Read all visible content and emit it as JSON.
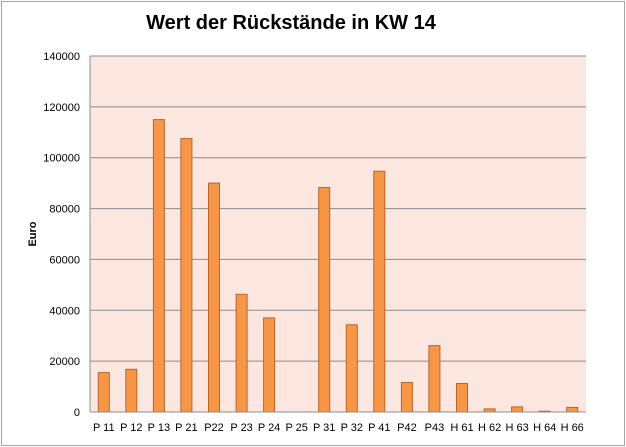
{
  "colors": {
    "plot_bg": "#fbe7e0",
    "bar_fill": "#f79646",
    "bar_stroke": "#b8652a",
    "grid": "#8c8c8c"
  },
  "chart_data": {
    "type": "bar",
    "title": "Wert der Rückstände in KW 14",
    "xlabel": "",
    "ylabel": "Euro",
    "ylim": [
      0,
      140000
    ],
    "yticks": [
      0,
      20000,
      40000,
      60000,
      80000,
      100000,
      120000,
      140000
    ],
    "grid": true,
    "categories": [
      "P 11",
      "P 12",
      "P 13",
      "P 21",
      "P22",
      "P 23",
      "P 24",
      "P 25",
      "P 31",
      "P 32",
      "P 41",
      "P42",
      "P43",
      "H 61",
      "H 62",
      "H 63",
      "H 64",
      "H 66"
    ],
    "values": [
      15500,
      16800,
      115000,
      107500,
      90000,
      46300,
      37000,
      0,
      88300,
      34300,
      94700,
      11600,
      26100,
      11200,
      1200,
      2000,
      300,
      1800
    ]
  }
}
